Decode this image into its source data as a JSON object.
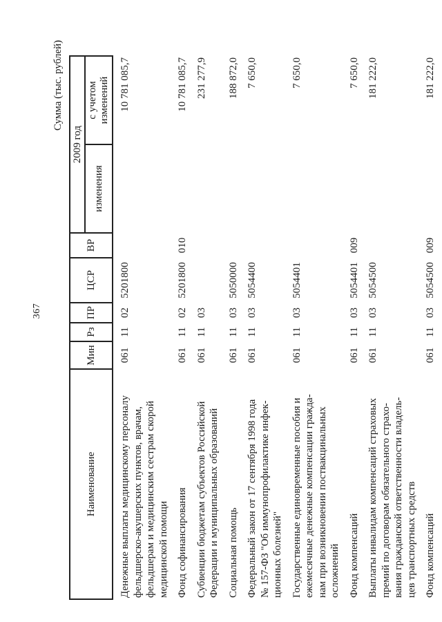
{
  "page": {
    "number": "367",
    "units_note": "Сумма (тыс. рублей)"
  },
  "table": {
    "headers": {
      "name": "Наименование",
      "min": "Мин",
      "rz": "Рз",
      "pr": "ПР",
      "csr": "ЦСР",
      "vr": "ВР",
      "year_group": "2009 год",
      "changes": "изменения",
      "with_changes": "с учетом изменений"
    },
    "rows": [
      {
        "name_lines": [
          "Денежные выплаты медицинскому персоналу",
          "фельдшерско-акушерских пунктов, врачам,",
          "фельдшерам и медицинским сестрам скорой",
          "медицинской помощи"
        ],
        "min": "061",
        "rz": "11",
        "pr": "02",
        "csr": "5201800",
        "vr": "",
        "changes": "",
        "with_changes": "10 781 085,7"
      },
      {
        "name_lines": [
          "Фонд софинансирования"
        ],
        "min": "061",
        "rz": "11",
        "pr": "02",
        "csr": "5201800",
        "vr": "010",
        "changes": "",
        "with_changes": "10 781 085,7"
      },
      {
        "name_lines": [
          "Субвенции бюджетам субъектов Российской",
          "Федерации и муниципальных образований"
        ],
        "min": "061",
        "rz": "11",
        "pr": "03",
        "csr": "",
        "vr": "",
        "changes": "",
        "with_changes": "231 277,9"
      },
      {
        "name_lines": [
          "Социальная помощь"
        ],
        "min": "061",
        "rz": "11",
        "pr": "03",
        "csr": "5050000",
        "vr": "",
        "changes": "",
        "with_changes": "188 872,0"
      },
      {
        "name_lines": [
          "Федеральный закон от 17 сентября 1998 года",
          "№ 157-ФЗ \"Об иммунопрофилактике инфек-",
          "ционных болезней\""
        ],
        "min": "061",
        "rz": "11",
        "pr": "03",
        "csr": "5054400",
        "vr": "",
        "changes": "",
        "with_changes": "7 650,0"
      },
      {
        "name_lines": [
          "Государственные единовременные пособия и",
          "ежемесячные денежные компенсации гражда-",
          "нам при возникновении поствакцинальных",
          "осложнений"
        ],
        "min": "061",
        "rz": "11",
        "pr": "03",
        "csr": "5054401",
        "vr": "",
        "changes": "",
        "with_changes": "7 650,0"
      },
      {
        "name_lines": [
          "Фонд компенсаций"
        ],
        "min": "061",
        "rz": "11",
        "pr": "03",
        "csr": "5054401",
        "vr": "009",
        "changes": "",
        "with_changes": "7 650,0"
      },
      {
        "name_lines": [
          "Выплаты инвалидам компенсаций страховых",
          "премий по договорам обязательного страхо-",
          "вания гражданской ответственности владель-",
          "цев транспортных средств"
        ],
        "min": "061",
        "rz": "11",
        "pr": "03",
        "csr": "5054500",
        "vr": "",
        "changes": "",
        "with_changes": "181 222,0"
      },
      {
        "name_lines": [
          "Фонд компенсаций"
        ],
        "min": "061",
        "rz": "11",
        "pr": "03",
        "csr": "5054500",
        "vr": "009",
        "changes": "",
        "with_changes": "181 222,0"
      }
    ]
  }
}
